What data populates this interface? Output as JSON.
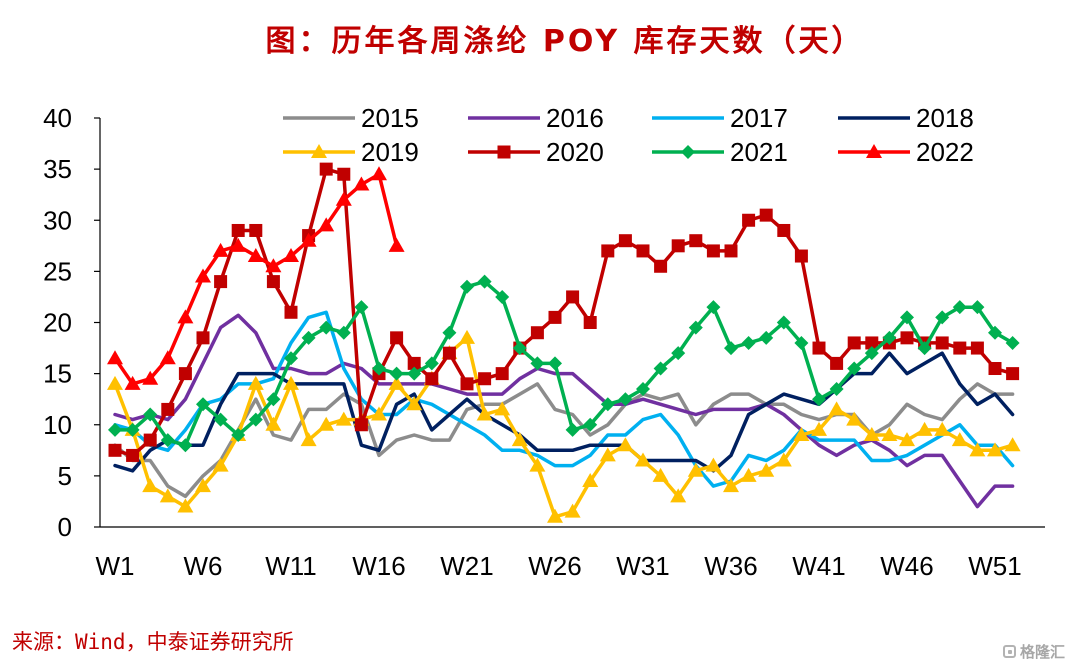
{
  "source": "来源：Wind，中泰证券研究所",
  "watermark": "格隆汇",
  "chart_data": {
    "type": "line",
    "title": "图：历年各周涤纶 POY 库存天数（天）",
    "xlabel": "",
    "ylabel": "",
    "ylim": [
      0,
      40
    ],
    "yticks": [
      0,
      5,
      10,
      15,
      20,
      25,
      30,
      35,
      40
    ],
    "xlim": [
      1,
      52
    ],
    "x_tick_weeks": [
      1,
      6,
      11,
      16,
      21,
      26,
      31,
      36,
      41,
      46,
      51
    ],
    "x_tick_labels": [
      "W1",
      "W6",
      "W11",
      "W16",
      "W21",
      "W26",
      "W31",
      "W36",
      "W41",
      "W46",
      "W51"
    ],
    "grid": false,
    "legend": "top",
    "series": [
      {
        "name": "2015",
        "color": "#8c8c8c",
        "marker": "none",
        "values": [
          8,
          6.5,
          6.5,
          4,
          3,
          5,
          6.5,
          9.5,
          12.5,
          9,
          8.5,
          11.5,
          11.5,
          13,
          12,
          7,
          8.5,
          9,
          8.5,
          8.5,
          11.5,
          12,
          12,
          13,
          14,
          11.5,
          11,
          9,
          10,
          12,
          13,
          12.5,
          13,
          10,
          12,
          13,
          13,
          12,
          12,
          11,
          10.5,
          11,
          11,
          9,
          10,
          12,
          11,
          10.5,
          12.5,
          14,
          13,
          13
        ]
      },
      {
        "name": "2016",
        "color": "#7030a0",
        "marker": "none",
        "values": [
          11,
          10.5,
          11,
          10.5,
          12.5,
          16,
          19.5,
          20.7,
          19,
          15.5,
          15.5,
          15,
          15,
          16,
          15.5,
          14,
          14,
          14,
          14,
          13.5,
          13,
          13,
          13,
          14.5,
          15.5,
          15,
          15,
          13.5,
          12,
          12,
          12.5,
          12,
          11.5,
          11,
          11.5,
          11.5,
          11.5,
          12,
          11,
          9.5,
          8,
          7,
          8,
          8.5,
          7.5,
          6,
          7,
          7,
          4.5,
          2,
          4,
          4
        ]
      },
      {
        "name": "2017",
        "color": "#00b0f0",
        "marker": "none",
        "values": [
          10,
          9.5,
          8,
          7.5,
          9.5,
          12,
          12.5,
          14,
          14,
          14.5,
          18,
          20.5,
          21,
          15.5,
          12.5,
          11,
          11,
          12.5,
          12,
          11,
          10,
          9,
          7.5,
          7.5,
          7,
          6,
          6,
          7,
          9,
          9,
          10.5,
          11,
          9,
          6,
          4,
          4.5,
          7,
          6.5,
          7.5,
          9.5,
          8.5,
          8.5,
          8.5,
          6.5,
          6.5,
          7,
          8,
          9,
          10,
          8,
          8,
          6
        ]
      },
      {
        "name": "2018",
        "color": "#002060",
        "marker": "none",
        "values": [
          6,
          5.5,
          7.5,
          8.5,
          8,
          8,
          12,
          15,
          15,
          15,
          14,
          14,
          14,
          14,
          8,
          7.5,
          12,
          13,
          9.5,
          11,
          12.5,
          11,
          10,
          9,
          7.5,
          7.5,
          7.5,
          8,
          8,
          8,
          6.5,
          6.5,
          6.5,
          6.5,
          5.5,
          7,
          11,
          12,
          13,
          12.5,
          12,
          13.5,
          15,
          15,
          17,
          15,
          16,
          17,
          14,
          12,
          13,
          11
        ]
      },
      {
        "name": "2019",
        "color": "#ffc000",
        "marker": "triangle",
        "values": [
          14,
          9.5,
          4,
          3,
          2,
          4,
          6,
          9,
          14,
          10,
          14,
          8.5,
          10,
          10.5,
          10.5,
          11,
          14,
          12,
          14.5,
          17,
          18.5,
          11,
          11.5,
          8.5,
          6,
          1,
          1.5,
          4.5,
          7,
          8,
          6.5,
          5,
          3,
          5.5,
          6,
          4,
          5,
          5.5,
          6.5,
          9,
          9.5,
          11.5,
          10.5,
          9,
          9,
          8.5,
          9.5,
          9.5,
          8.5,
          7.5,
          7.5,
          8
        ]
      },
      {
        "name": "2020",
        "color": "#c00000",
        "marker": "square",
        "values": [
          7.5,
          7,
          8.5,
          11.5,
          15,
          18.5,
          24,
          29,
          29,
          24,
          21,
          28.5,
          35,
          34.5,
          10,
          15,
          18.5,
          16,
          14.5,
          17,
          14,
          14.5,
          15,
          17.5,
          19,
          20.5,
          22.5,
          20,
          27,
          28,
          27,
          25.5,
          27.5,
          28,
          27,
          27,
          30,
          30.5,
          29,
          26.5,
          17.5,
          16,
          18,
          18,
          18,
          18.5,
          18,
          18,
          17.5,
          17.5,
          15.5,
          15
        ]
      },
      {
        "name": "2021",
        "color": "#00b050",
        "marker": "diamond",
        "values": [
          9.5,
          9.5,
          11,
          8.5,
          8,
          12,
          10.5,
          9,
          10.5,
          12.5,
          16.5,
          18.5,
          19.5,
          19,
          21.5,
          15.5,
          15,
          15,
          16,
          19,
          23.5,
          24,
          22.5,
          17.5,
          16,
          16,
          9.5,
          10,
          12,
          12.5,
          13.5,
          15.5,
          17,
          19.5,
          21.5,
          17.5,
          18,
          18.5,
          20,
          18,
          12.5,
          13.5,
          15.5,
          17,
          18.5,
          20.5,
          17.5,
          20.5,
          21.5,
          21.5,
          19,
          18
        ]
      },
      {
        "name": "2022",
        "color": "#ff0000",
        "marker": "triangle",
        "values": [
          16.5,
          14,
          14.5,
          16.5,
          20.5,
          24.5,
          27,
          27.5,
          26.5,
          25.5,
          26.5,
          28,
          29.5,
          32,
          33.5,
          34.5,
          27.5
        ]
      }
    ]
  }
}
